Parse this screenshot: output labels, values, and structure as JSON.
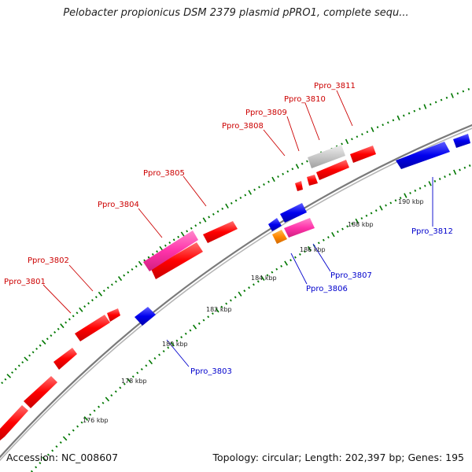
{
  "title": "Pelobacter propionicus DSM 2379 plasmid pPRO1, complete sequ...",
  "footer": {
    "accession": "Accession: NC_008607",
    "summary": "Topology: circular; Length: 202,397 bp; Genes: 195"
  },
  "colors": {
    "backbone": "#8a8a8a",
    "forward_label": "#cc0000",
    "reverse_label": "#0000cc",
    "tick": "#007700"
  },
  "scale_labels": [
    "176 kbp",
    "178 kbp",
    "180 kbp",
    "182 kbp",
    "184 kbp",
    "186 kbp",
    "188 kbp",
    "190 kbp"
  ],
  "forward_labels": [
    "Ppro_3801",
    "Ppro_3802",
    "Ppro_3804",
    "Ppro_3805",
    "Ppro_3808",
    "Ppro_3809",
    "Ppro_3810",
    "Ppro_3811"
  ],
  "reverse_labels": [
    "Ppro_3803",
    "Ppro_3806",
    "Ppro_3807",
    "Ppro_3812"
  ],
  "feature_colors": {
    "red": "#ff0000",
    "pink": "#ff33aa",
    "gray": "#c8c8c8",
    "blue": "#0000ee",
    "orange": "#ff8800"
  }
}
